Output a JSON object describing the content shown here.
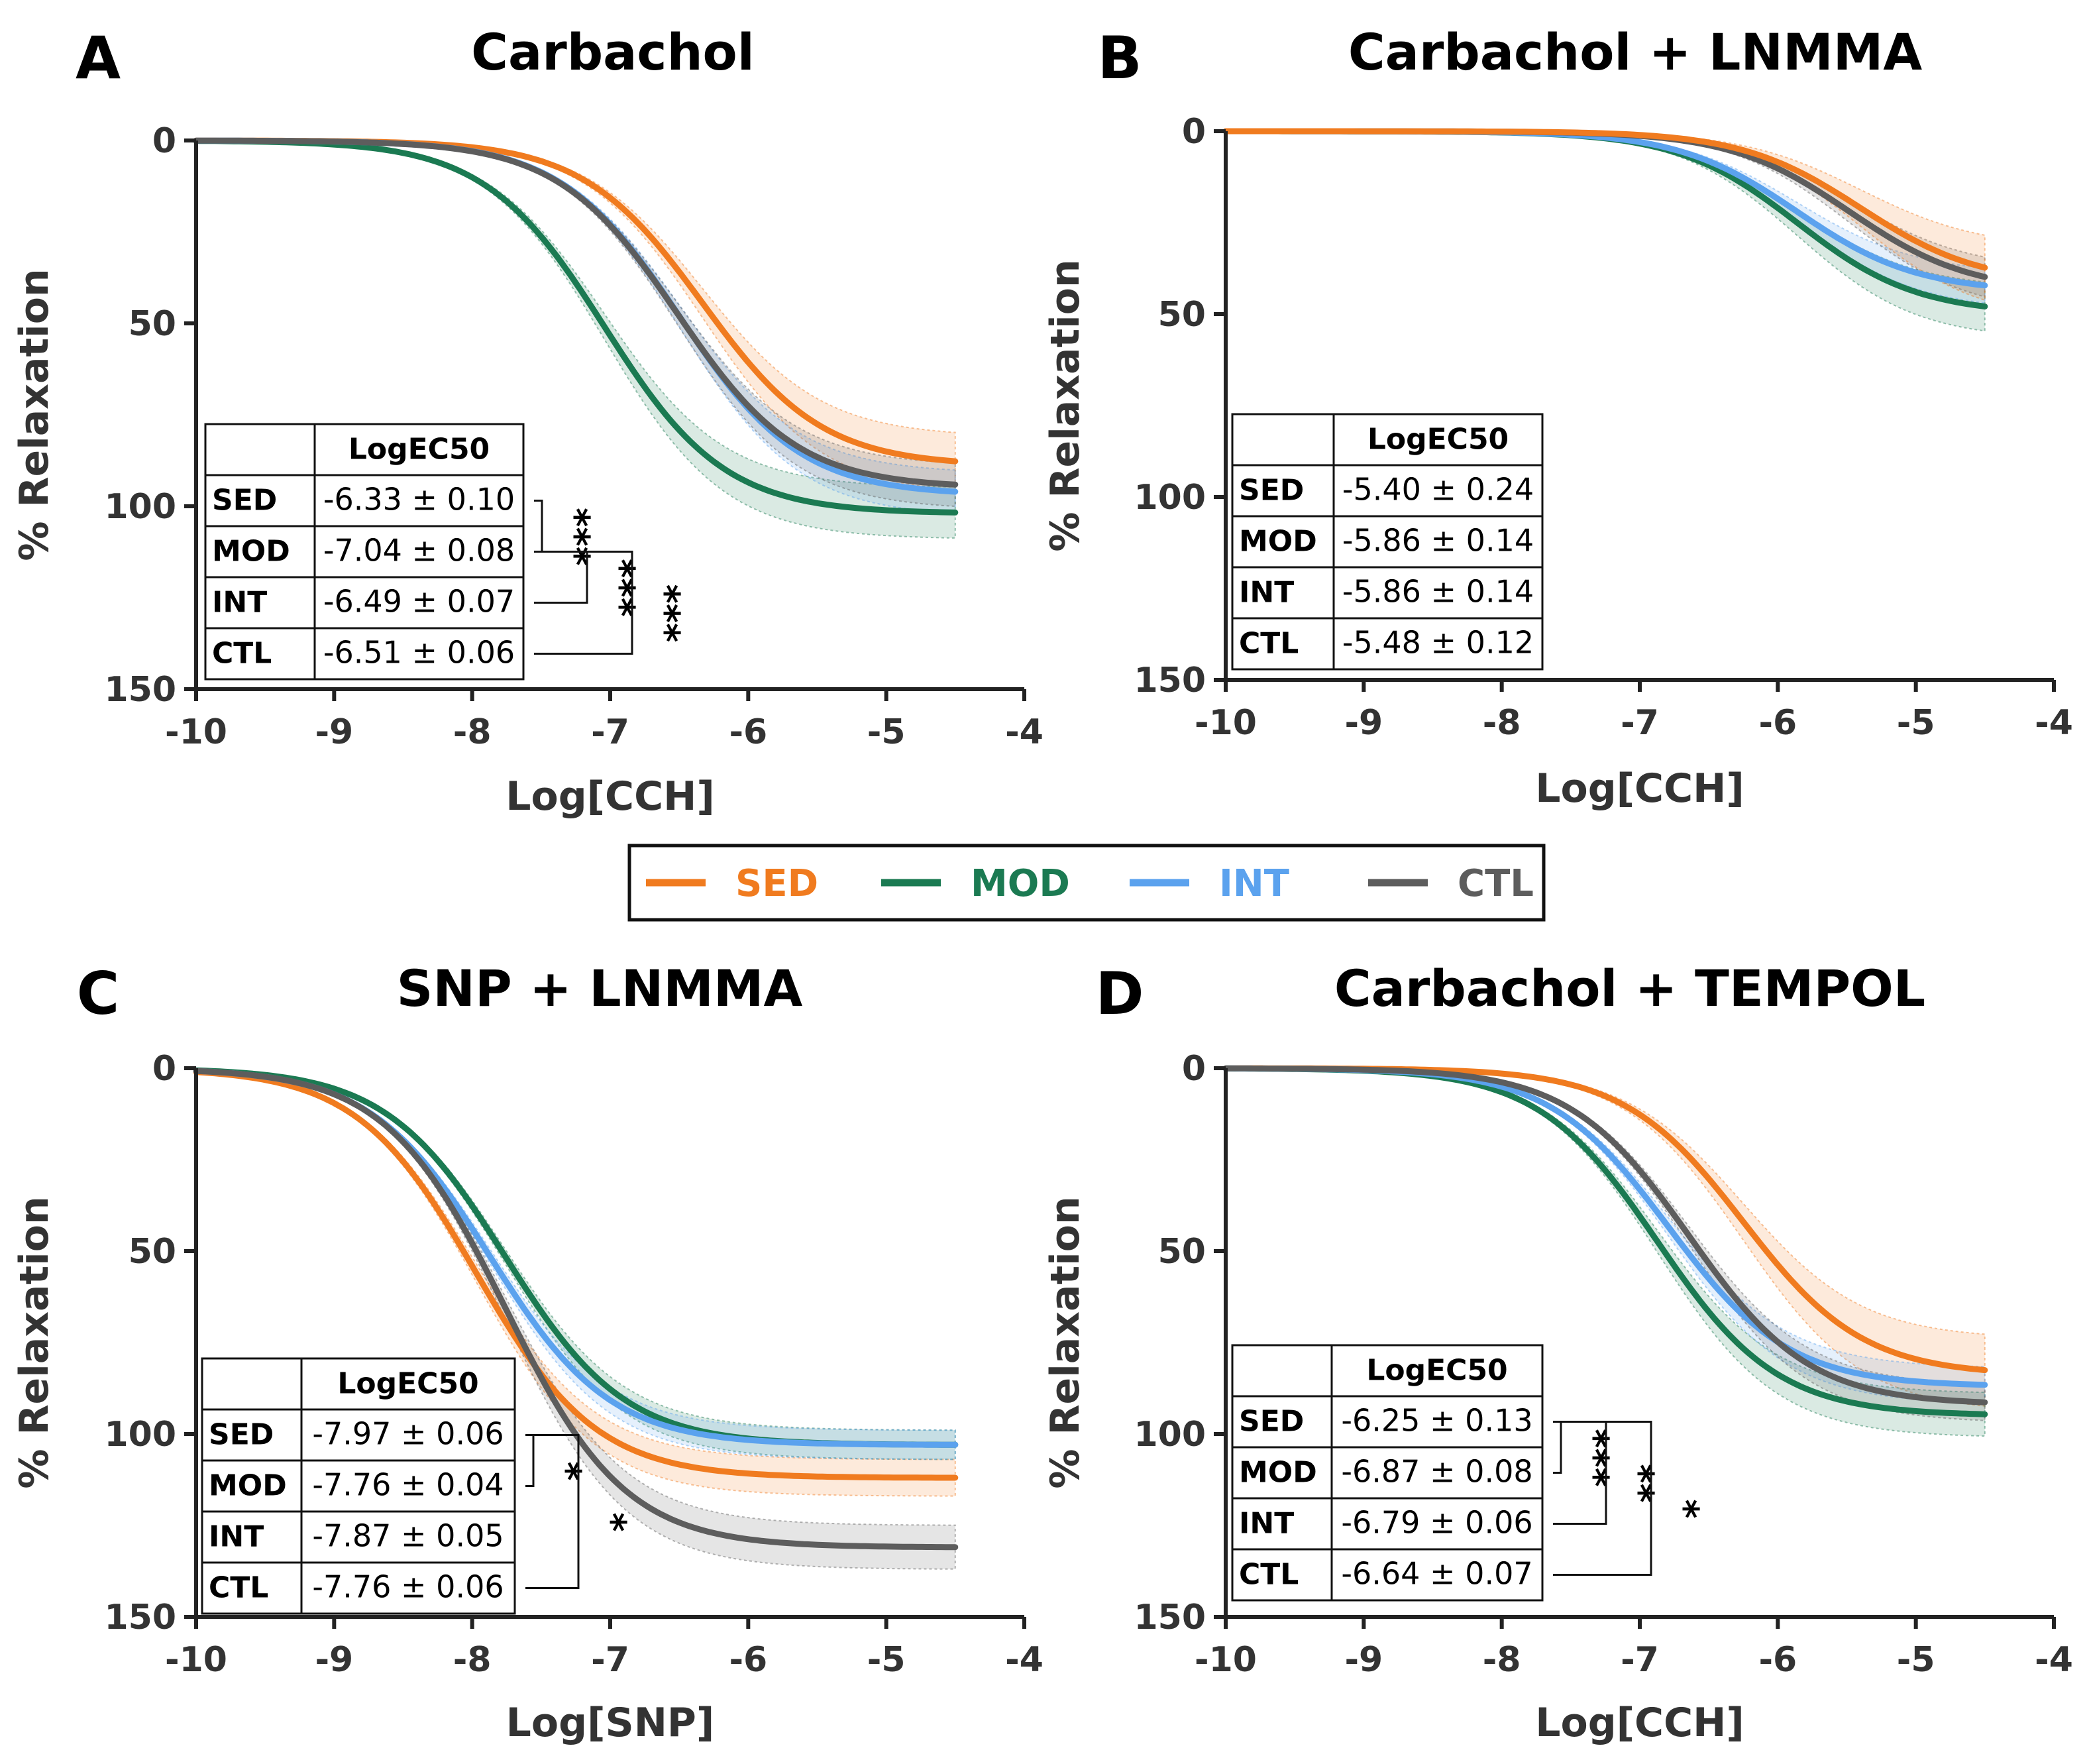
{
  "colors": {
    "SED": "#f07b1f",
    "MOD": "#1b7a52",
    "INT": "#5ba2ee",
    "CTL": "#5d5d5d"
  },
  "legend": {
    "items": [
      "SED",
      "MOD",
      "INT",
      "CTL"
    ]
  },
  "table_header": "LogEC50",
  "chart_data": [
    {
      "letter": "A",
      "title": "Carbachol",
      "type": "line",
      "curve": "sigmoidal dose-response",
      "xlabel": "Log[CCH]",
      "ylabel": "% Relaxation",
      "xlim": [
        -10,
        -4
      ],
      "ylim": [
        0,
        150
      ],
      "y_inverted": true,
      "xticks": [
        -10,
        -9,
        -8,
        -7,
        -6,
        -5,
        -4
      ],
      "yticks": [
        0,
        50,
        100,
        150
      ],
      "x_end": -4.5,
      "series": [
        {
          "name": "SED",
          "logEC50": -6.33,
          "top": 89,
          "hill": 1.0,
          "band": 8,
          "table_value": "-6.33 ± 0.10"
        },
        {
          "name": "MOD",
          "logEC50": -7.04,
          "top": 102,
          "hill": 1.0,
          "band": 7,
          "table_value": "-7.04 ± 0.08"
        },
        {
          "name": "INT",
          "logEC50": -6.49,
          "top": 97,
          "hill": 1.0,
          "band": 6,
          "table_value": "-6.49 ± 0.07"
        },
        {
          "name": "CTL",
          "logEC50": -6.51,
          "top": 95,
          "hill": 1.0,
          "band": 6,
          "table_value": "-6.51 ± 0.06"
        }
      ],
      "significance": [
        {
          "between": [
            "SED",
            "MOD"
          ],
          "label": "***"
        },
        {
          "between": [
            "MOD",
            "INT"
          ],
          "label": "***"
        },
        {
          "between": [
            "MOD",
            "CTL"
          ],
          "label": "***"
        }
      ]
    },
    {
      "letter": "B",
      "title": "Carbachol + LNMMA",
      "type": "line",
      "curve": "sigmoidal dose-response",
      "xlabel": "Log[CCH]",
      "ylabel": "% Relaxation",
      "xlim": [
        -10,
        -4
      ],
      "ylim": [
        0,
        150
      ],
      "y_inverted": true,
      "xticks": [
        -10,
        -9,
        -8,
        -7,
        -6,
        -5,
        -4
      ],
      "yticks": [
        0,
        50,
        100,
        150
      ],
      "x_end": -4.5,
      "series": [
        {
          "name": "SED",
          "logEC50": -5.4,
          "top": 42,
          "hill": 1.0,
          "band": 10,
          "table_value": "-5.40 ± 0.24"
        },
        {
          "name": "MOD",
          "logEC50": -5.86,
          "top": 50,
          "hill": 1.0,
          "band": 7,
          "table_value": "-5.86 ± 0.14"
        },
        {
          "name": "INT",
          "logEC50": -5.86,
          "top": 44,
          "hill": 1.0,
          "band": 5,
          "table_value": "-5.86 ± 0.14"
        },
        {
          "name": "CTL",
          "logEC50": -5.48,
          "top": 44,
          "hill": 1.0,
          "band": 6,
          "table_value": "-5.48 ± 0.12"
        }
      ],
      "significance": []
    },
    {
      "letter": "C",
      "title": "SNP + LNMMA",
      "type": "line",
      "curve": "sigmoidal dose-response",
      "xlabel": "Log[SNP]",
      "ylabel": "% Relaxation",
      "xlim": [
        -10,
        -4
      ],
      "ylim": [
        0,
        150
      ],
      "y_inverted": true,
      "xticks": [
        -10,
        -9,
        -8,
        -7,
        -6,
        -5,
        -4
      ],
      "yticks": [
        0,
        50,
        100,
        150
      ],
      "x_end": -4.5,
      "series": [
        {
          "name": "SED",
          "logEC50": -7.97,
          "top": 112,
          "hill": 1.0,
          "band": 5,
          "table_value": "-7.97 ± 0.06"
        },
        {
          "name": "MOD",
          "logEC50": -7.76,
          "top": 103,
          "hill": 1.0,
          "band": 4,
          "table_value": "-7.76 ± 0.04"
        },
        {
          "name": "INT",
          "logEC50": -7.87,
          "top": 103,
          "hill": 1.0,
          "band": 4,
          "table_value": "-7.87 ± 0.05"
        },
        {
          "name": "CTL",
          "logEC50": -7.76,
          "top": 131,
          "hill": 1.0,
          "band": 6,
          "table_value": "-7.76 ± 0.06"
        }
      ],
      "significance": [
        {
          "between": [
            "SED",
            "MOD"
          ],
          "label": "*"
        },
        {
          "between": [
            "SED",
            "CTL"
          ],
          "label": "*"
        }
      ]
    },
    {
      "letter": "D",
      "title": "Carbachol + TEMPOL",
      "type": "line",
      "curve": "sigmoidal dose-response",
      "xlabel": "Log[CCH]",
      "ylabel": "% Relaxation",
      "xlim": [
        -10,
        -4
      ],
      "ylim": [
        0,
        150
      ],
      "y_inverted": true,
      "xticks": [
        -10,
        -9,
        -8,
        -7,
        -6,
        -5,
        -4
      ],
      "yticks": [
        0,
        50,
        100,
        150
      ],
      "x_end": -4.5,
      "series": [
        {
          "name": "SED",
          "logEC50": -6.25,
          "top": 84,
          "hill": 1.0,
          "band": 10,
          "table_value": "-6.25 ± 0.13"
        },
        {
          "name": "MOD",
          "logEC50": -6.87,
          "top": 95,
          "hill": 1.0,
          "band": 6,
          "table_value": "-6.87 ± 0.08"
        },
        {
          "name": "INT",
          "logEC50": -6.79,
          "top": 87,
          "hill": 1.0,
          "band": 5,
          "table_value": "-6.79 ± 0.06"
        },
        {
          "name": "CTL",
          "logEC50": -6.64,
          "top": 92,
          "hill": 1.0,
          "band": 5,
          "table_value": "-6.64 ± 0.07"
        }
      ],
      "significance": [
        {
          "between": [
            "SED",
            "MOD"
          ],
          "label": "***"
        },
        {
          "between": [
            "SED",
            "INT"
          ],
          "label": "**"
        },
        {
          "between": [
            "SED",
            "CTL"
          ],
          "label": "*"
        }
      ]
    }
  ]
}
